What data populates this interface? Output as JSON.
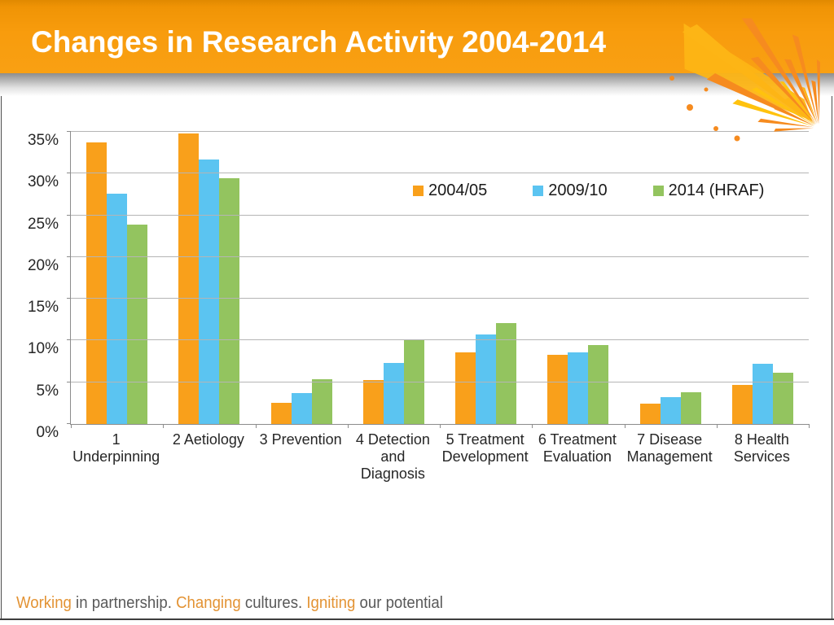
{
  "slide": {
    "title": "Changes in Research Activity 2004-2014",
    "footer": {
      "accent_color": "#e39334",
      "text_color": "#595959",
      "segments": [
        {
          "text": "Working",
          "accent": true
        },
        {
          "text": " in partnership. ",
          "accent": false
        },
        {
          "text": "Changing",
          "accent": true
        },
        {
          "text": " cultures. ",
          "accent": false
        },
        {
          "text": "Igniting",
          "accent": true
        },
        {
          "text": " our potential",
          "accent": false
        }
      ]
    },
    "theme": {
      "header_orange": "#f89c0d",
      "splash_yellow": "#ffc20e",
      "splash_gold": "#fdb515",
      "splash_orange": "#f68b1f"
    }
  },
  "chart_data": {
    "type": "bar",
    "title": "",
    "xlabel": "",
    "ylabel": "",
    "categories": [
      "1 Underpinning",
      "2 Aetiology",
      "3 Prevention",
      "4 Detection and Diagnosis",
      "5 Treatment Development",
      "6 Treatment Evaluation",
      "7 Disease Management",
      "8 Health Services"
    ],
    "category_label_lines": [
      [
        "1",
        "Underpinning"
      ],
      [
        "2 Aetiology"
      ],
      [
        "3 Prevention"
      ],
      [
        "4 Detection",
        "and",
        "Diagnosis"
      ],
      [
        "5 Treatment",
        "Development"
      ],
      [
        "6 Treatment",
        "Evaluation"
      ],
      [
        "7 Disease",
        "Management"
      ],
      [
        "8 Health",
        "Services"
      ]
    ],
    "series": [
      {
        "name": "2004/05",
        "color": "#f9a01b",
        "values": [
          33.7,
          34.8,
          2.5,
          5.3,
          8.6,
          8.3,
          2.4,
          4.7
        ]
      },
      {
        "name": "2009/10",
        "color": "#5bc4f1",
        "values": [
          27.6,
          31.7,
          3.7,
          7.3,
          10.7,
          8.6,
          3.2,
          7.2
        ]
      },
      {
        "name": "2014 (HRAF)",
        "color": "#93c45f",
        "values": [
          23.9,
          29.4,
          5.4,
          10.0,
          12.1,
          9.5,
          3.8,
          6.1
        ]
      }
    ],
    "ylim": [
      0,
      35
    ],
    "ytick_step": 5,
    "ytick_labels": [
      "0%",
      "5%",
      "10%",
      "15%",
      "20%",
      "25%",
      "30%",
      "35%"
    ],
    "grid": true,
    "legend_position": "inside-top",
    "colors": {
      "grid": "#b5b5b5",
      "axis": "#8c8c8c",
      "text": "#262626"
    }
  }
}
